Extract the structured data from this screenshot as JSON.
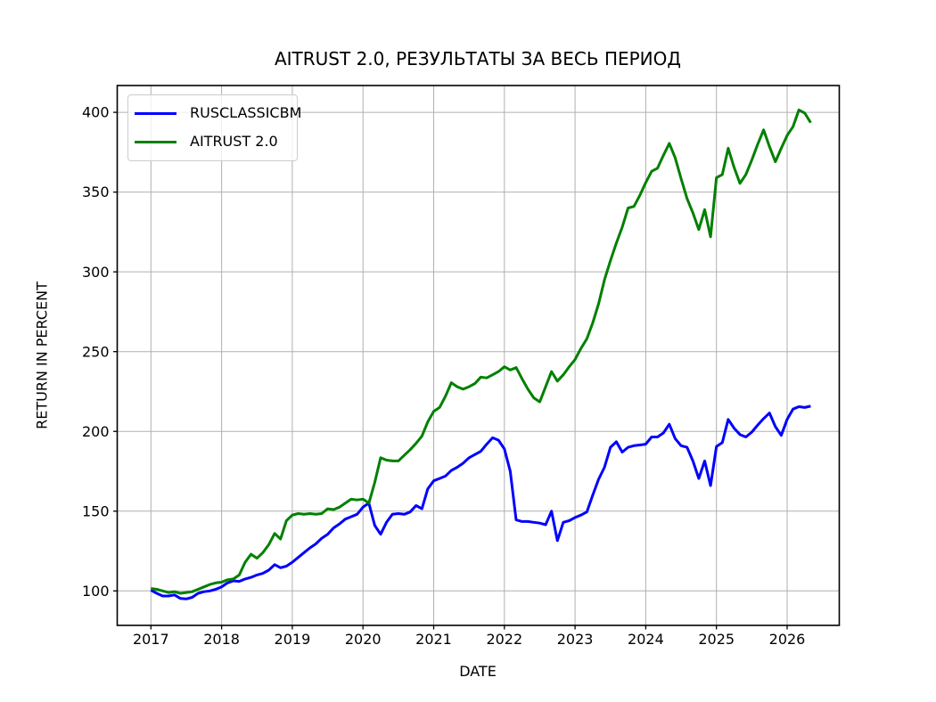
{
  "chart_data": {
    "type": "line",
    "title": "AITRUST 2.0, РЕЗУЛЬТАТЫ ЗА ВЕСЬ ПЕРИОД",
    "xlabel": "DATE",
    "ylabel": "RETURN IN PERCENT",
    "grid": true,
    "legend_position": "upper left",
    "x_tick_labels": [
      "2017",
      "2018",
      "2019",
      "2020",
      "2021",
      "2022",
      "2023",
      "2024",
      "2025",
      "2026"
    ],
    "x_ticks_years": [
      2017,
      2018,
      2019,
      2020,
      2021,
      2022,
      2023,
      2024,
      2025,
      2026
    ],
    "y_ticks": [
      100,
      150,
      200,
      250,
      300,
      350,
      400
    ],
    "y_tick_labels": [
      "100",
      "150",
      "200",
      "250",
      "300",
      "350",
      "400"
    ],
    "xlim": [
      2016.52,
      2026.73
    ],
    "ylim": [
      78.4,
      417.6
    ],
    "x_start_year": 2017,
    "points_per_year": 12,
    "series": [
      {
        "name": "RUSCLASSICBM",
        "color": "#0000ff",
        "values": [
          100.5,
          98.5,
          96.8,
          96.8,
          97.5,
          95.3,
          95,
          96,
          98.5,
          99.5,
          100,
          101,
          102.5,
          105,
          106.3,
          106,
          107.5,
          108.5,
          110,
          111,
          113,
          116.5,
          114.5,
          115.5,
          118,
          121,
          124,
          127,
          129.5,
          133,
          135.5,
          139.5,
          142,
          145,
          146.5,
          148,
          152.5,
          155,
          141,
          135.5,
          143,
          148,
          148.5,
          148,
          149.5,
          153.5,
          151.5,
          164,
          169,
          170.5,
          172,
          175.5,
          177.5,
          180,
          183.5,
          185.5,
          187.5,
          192,
          196,
          194.5,
          189,
          175,
          144.5,
          143.5,
          143.5,
          143,
          142.5,
          141.5,
          150,
          131.5,
          143,
          144,
          146,
          147.5,
          149.5,
          160,
          170,
          177.5,
          190,
          193.5,
          187,
          190,
          191,
          191.5,
          192,
          196.5,
          196.5,
          199,
          204.5,
          195.5,
          191,
          190,
          181.5,
          170.5,
          181.5,
          166,
          190.5,
          193,
          207.5,
          202,
          198,
          196.5,
          199.5,
          204,
          208,
          211.5,
          203,
          197.5,
          207.5,
          214,
          215.5,
          215,
          215.8
        ]
      },
      {
        "name": "AITRUST 2.0",
        "color": "#008000",
        "values": [
          101.5,
          101,
          100,
          99,
          99.5,
          98.5,
          99,
          99.5,
          101,
          102.5,
          104,
          105,
          105.5,
          107,
          107.5,
          110,
          118,
          123,
          120.5,
          124,
          129,
          136,
          132.5,
          144,
          147.5,
          148.5,
          148,
          148.5,
          148,
          148.5,
          151.5,
          151,
          152.5,
          155,
          157.5,
          157,
          157.5,
          155,
          168,
          183.5,
          182,
          181.5,
          181.5,
          185,
          188.5,
          192.5,
          197,
          206,
          212.5,
          215,
          222,
          230.5,
          228,
          226.5,
          228,
          230,
          234,
          233.5,
          235.5,
          237.5,
          240.5,
          238.5,
          240,
          233,
          226.5,
          221,
          218.5,
          228,
          237.5,
          231.5,
          235.5,
          240.5,
          245,
          252,
          258,
          268,
          280,
          295,
          307,
          318,
          328,
          340,
          341,
          348,
          356,
          363,
          365,
          373,
          380.5,
          371.5,
          358.5,
          346,
          337,
          326.5,
          339,
          322,
          359,
          361,
          377.5,
          365.5,
          355.5,
          361,
          370,
          380,
          389,
          378.5,
          369,
          377.5,
          385.5,
          391,
          401.5,
          399.5,
          393.5
        ]
      }
    ]
  },
  "colors": {
    "grid": "#b0b0b0",
    "axis": "#000000",
    "background": "#ffffff",
    "blue_series": "#0000ff",
    "green_series": "#008000"
  }
}
